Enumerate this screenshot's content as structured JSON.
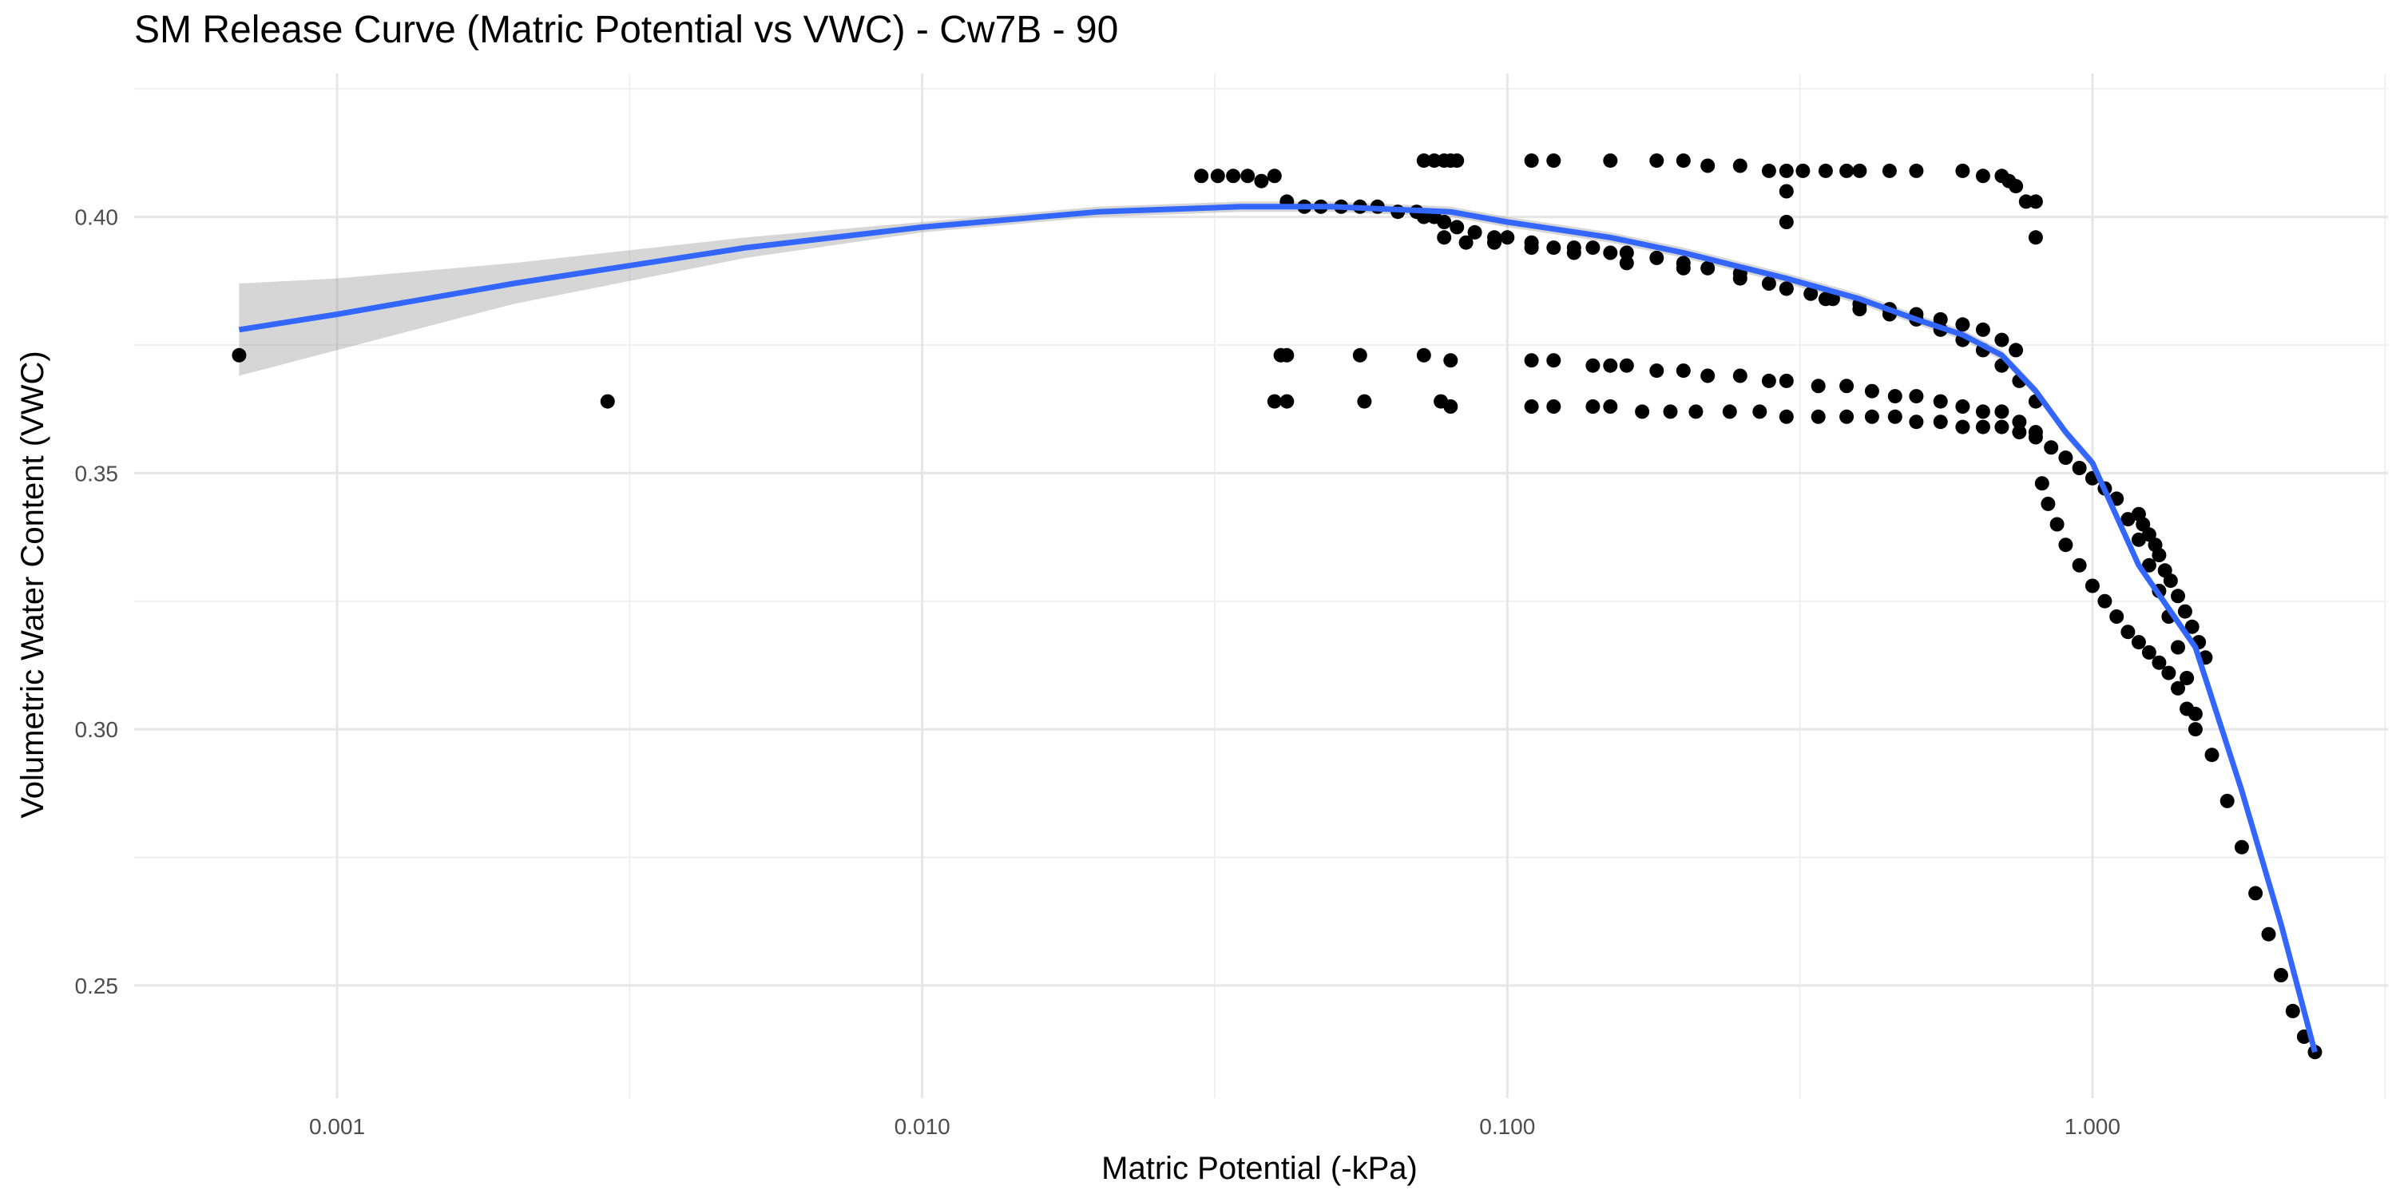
{
  "chart_data": {
    "type": "scatter",
    "title": "SM Release Curve (Matric Potential vs VWC) - Cw7B - 90",
    "xlabel": "Matric Potential (-kPa)",
    "ylabel": "Volumetric Water Content (VWC)",
    "x_scale": "log10",
    "xlim": [
      0.00045,
      3.2
    ],
    "ylim": [
      0.228,
      0.428
    ],
    "x_ticks": [
      0.001,
      0.01,
      0.1,
      1
    ],
    "x_tick_labels": [
      "0.001",
      "0.010",
      "0.100",
      "1.000"
    ],
    "y_ticks": [
      0.25,
      0.3,
      0.35,
      0.4
    ],
    "y_tick_labels": [
      "0.25",
      "0.30",
      "0.35",
      "0.40"
    ],
    "grid": true,
    "legend": "none",
    "colors": {
      "points": "#000000",
      "fit_line": "#3366FF",
      "ribbon": "#999999"
    },
    "series": [
      {
        "kind": "points",
        "x": [
          0.00068,
          0.0029,
          0.03,
          0.032,
          0.034,
          0.036,
          0.038,
          0.04,
          0.042,
          0.045,
          0.048,
          0.052,
          0.056,
          0.06,
          0.065,
          0.07,
          0.075,
          0.072,
          0.078,
          0.082,
          0.088,
          0.095,
          0.1,
          0.11,
          0.12,
          0.13,
          0.14,
          0.15,
          0.16,
          0.18,
          0.2,
          0.22,
          0.25,
          0.28,
          0.3,
          0.33,
          0.36,
          0.4,
          0.45,
          0.5,
          0.55,
          0.6,
          0.65,
          0.7,
          0.74,
          0.078,
          0.085,
          0.095,
          0.11,
          0.13,
          0.16,
          0.2,
          0.25,
          0.3,
          0.35,
          0.4,
          0.45,
          0.5,
          0.55,
          0.6,
          0.65,
          0.7,
          0.75,
          0.8,
          0.041,
          0.042,
          0.056,
          0.072,
          0.08,
          0.11,
          0.12,
          0.14,
          0.15,
          0.16,
          0.18,
          0.2,
          0.22,
          0.25,
          0.28,
          0.3,
          0.34,
          0.38,
          0.42,
          0.46,
          0.5,
          0.55,
          0.6,
          0.65,
          0.7,
          0.75,
          0.8,
          0.04,
          0.042,
          0.057,
          0.077,
          0.08,
          0.11,
          0.12,
          0.14,
          0.15,
          0.17,
          0.19,
          0.21,
          0.24,
          0.27,
          0.3,
          0.34,
          0.38,
          0.42,
          0.46,
          0.5,
          0.55,
          0.6,
          0.65,
          0.7,
          0.75,
          0.8,
          0.85,
          0.9,
          0.95,
          1.0,
          1.05,
          1.1,
          1.15,
          1.2,
          1.25,
          1.3,
          1.35,
          1.4,
          1.45,
          1.5,
          1.6,
          1.7,
          1.8,
          1.9,
          2.0,
          2.1,
          2.2,
          2.3,
          2.4,
          0.82,
          0.84,
          0.87,
          0.9,
          0.95,
          1.0,
          1.05,
          1.1,
          1.15,
          1.2,
          1.25,
          1.3,
          1.35,
          1.4,
          1.45,
          1.5,
          1.2,
          1.22,
          1.25,
          1.28,
          1.3,
          1.33,
          1.36,
          1.4,
          1.44,
          1.48,
          1.52,
          1.56,
          0.072,
          0.078,
          0.082,
          0.11,
          0.12,
          0.15,
          0.18,
          0.2,
          0.22,
          0.25,
          0.28,
          0.3,
          0.32,
          0.35,
          0.38,
          0.4,
          0.45,
          0.5,
          0.6,
          0.65,
          0.7,
          0.72,
          0.74,
          0.77,
          0.8,
          0.3,
          0.3,
          0.8,
          0.075,
          0.08
        ],
        "y": [
          0.373,
          0.364,
          0.408,
          0.408,
          0.408,
          0.408,
          0.407,
          0.408,
          0.403,
          0.402,
          0.402,
          0.402,
          0.402,
          0.402,
          0.401,
          0.401,
          0.4,
          0.4,
          0.399,
          0.398,
          0.397,
          0.396,
          0.396,
          0.395,
          0.394,
          0.394,
          0.394,
          0.393,
          0.393,
          0.392,
          0.391,
          0.39,
          0.389,
          0.387,
          0.386,
          0.385,
          0.384,
          0.383,
          0.382,
          0.381,
          0.38,
          0.379,
          0.378,
          0.376,
          0.374,
          0.396,
          0.395,
          0.395,
          0.394,
          0.393,
          0.391,
          0.39,
          0.388,
          0.386,
          0.384,
          0.382,
          0.381,
          0.38,
          0.378,
          0.376,
          0.374,
          0.371,
          0.368,
          0.364,
          0.373,
          0.373,
          0.373,
          0.373,
          0.372,
          0.372,
          0.372,
          0.371,
          0.371,
          0.371,
          0.37,
          0.37,
          0.369,
          0.369,
          0.368,
          0.368,
          0.367,
          0.367,
          0.366,
          0.365,
          0.365,
          0.364,
          0.363,
          0.362,
          0.362,
          0.36,
          0.358,
          0.364,
          0.364,
          0.364,
          0.364,
          0.363,
          0.363,
          0.363,
          0.363,
          0.363,
          0.362,
          0.362,
          0.362,
          0.362,
          0.362,
          0.361,
          0.361,
          0.361,
          0.361,
          0.361,
          0.36,
          0.36,
          0.359,
          0.359,
          0.359,
          0.358,
          0.357,
          0.355,
          0.353,
          0.351,
          0.349,
          0.347,
          0.345,
          0.341,
          0.337,
          0.332,
          0.327,
          0.322,
          0.316,
          0.31,
          0.303,
          0.295,
          0.286,
          0.277,
          0.268,
          0.26,
          0.252,
          0.245,
          0.24,
          0.237,
          0.348,
          0.344,
          0.34,
          0.336,
          0.332,
          0.328,
          0.325,
          0.322,
          0.319,
          0.317,
          0.315,
          0.313,
          0.311,
          0.308,
          0.304,
          0.3,
          0.342,
          0.34,
          0.338,
          0.336,
          0.334,
          0.331,
          0.329,
          0.326,
          0.323,
          0.32,
          0.317,
          0.314,
          0.411,
          0.411,
          0.411,
          0.411,
          0.411,
          0.411,
          0.411,
          0.411,
          0.41,
          0.41,
          0.409,
          0.409,
          0.409,
          0.409,
          0.409,
          0.409,
          0.409,
          0.409,
          0.409,
          0.408,
          0.408,
          0.407,
          0.406,
          0.403,
          0.403,
          0.405,
          0.399,
          0.396,
          0.411,
          0.411
        ]
      },
      {
        "kind": "smooth",
        "x": [
          0.00068,
          0.001,
          0.002,
          0.005,
          0.01,
          0.02,
          0.035,
          0.05,
          0.08,
          0.1,
          0.15,
          0.2,
          0.3,
          0.4,
          0.5,
          0.6,
          0.7,
          0.8,
          0.9,
          1.0,
          1.2,
          1.5,
          1.8,
          2.1,
          2.4
        ],
        "y": [
          0.378,
          0.381,
          0.387,
          0.394,
          0.398,
          0.401,
          0.402,
          0.402,
          0.401,
          0.399,
          0.396,
          0.393,
          0.388,
          0.384,
          0.38,
          0.377,
          0.373,
          0.366,
          0.358,
          0.352,
          0.332,
          0.316,
          0.288,
          0.262,
          0.237
        ],
        "ci_low": [
          0.369,
          0.374,
          0.383,
          0.392,
          0.397,
          0.4,
          0.401,
          0.401,
          0.4,
          0.398,
          0.395,
          0.392,
          0.387,
          0.383,
          0.379,
          0.376,
          0.372,
          0.365,
          0.357,
          0.351,
          0.331,
          0.315,
          0.287,
          0.261,
          0.236
        ],
        "ci_high": [
          0.387,
          0.388,
          0.391,
          0.396,
          0.399,
          0.402,
          0.403,
          0.403,
          0.402,
          0.4,
          0.397,
          0.394,
          0.389,
          0.385,
          0.381,
          0.378,
          0.374,
          0.367,
          0.359,
          0.353,
          0.333,
          0.317,
          0.289,
          0.263,
          0.238
        ]
      }
    ]
  }
}
